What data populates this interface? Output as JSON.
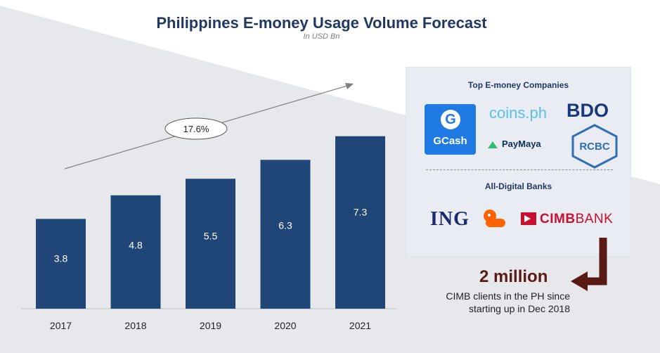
{
  "title": "Philippines E-money Usage Volume Forecast",
  "subtitle": "In USD Bn",
  "chart_data": {
    "type": "bar",
    "categories": [
      "2017",
      "2018",
      "2019",
      "2020",
      "2021"
    ],
    "values": [
      3.8,
      4.8,
      5.5,
      6.3,
      7.3
    ],
    "title": "Philippines E-money Usage Volume Forecast",
    "subtitle": "In USD Bn",
    "ylim": [
      0,
      8
    ],
    "grid": false,
    "bar_color": "#1f4677",
    "growth_annotation": "17.6%"
  },
  "panel": {
    "companies_heading": "Top E-money Companies",
    "banks_heading": "All-Digital Banks",
    "logos": {
      "gcash": "GCash",
      "gcash_mark": "G",
      "coins": "coins.ph",
      "bdo": "BDO",
      "paymaya": "PayMaya",
      "rcbc": "RCBC",
      "ing": "ING",
      "cimb_bold": "CIMB",
      "cimb_rest": "BANK"
    }
  },
  "callout": {
    "number": "2 million",
    "line1": "CIMB clients in the PH since",
    "line2": "starting up in Dec 2018"
  },
  "colors": {
    "title": "#1f3864",
    "bar": "#1f4677",
    "panel_bg": "#e9edf3",
    "callout_arrow": "#5a1a14",
    "background_band": "#e6e8ec"
  }
}
